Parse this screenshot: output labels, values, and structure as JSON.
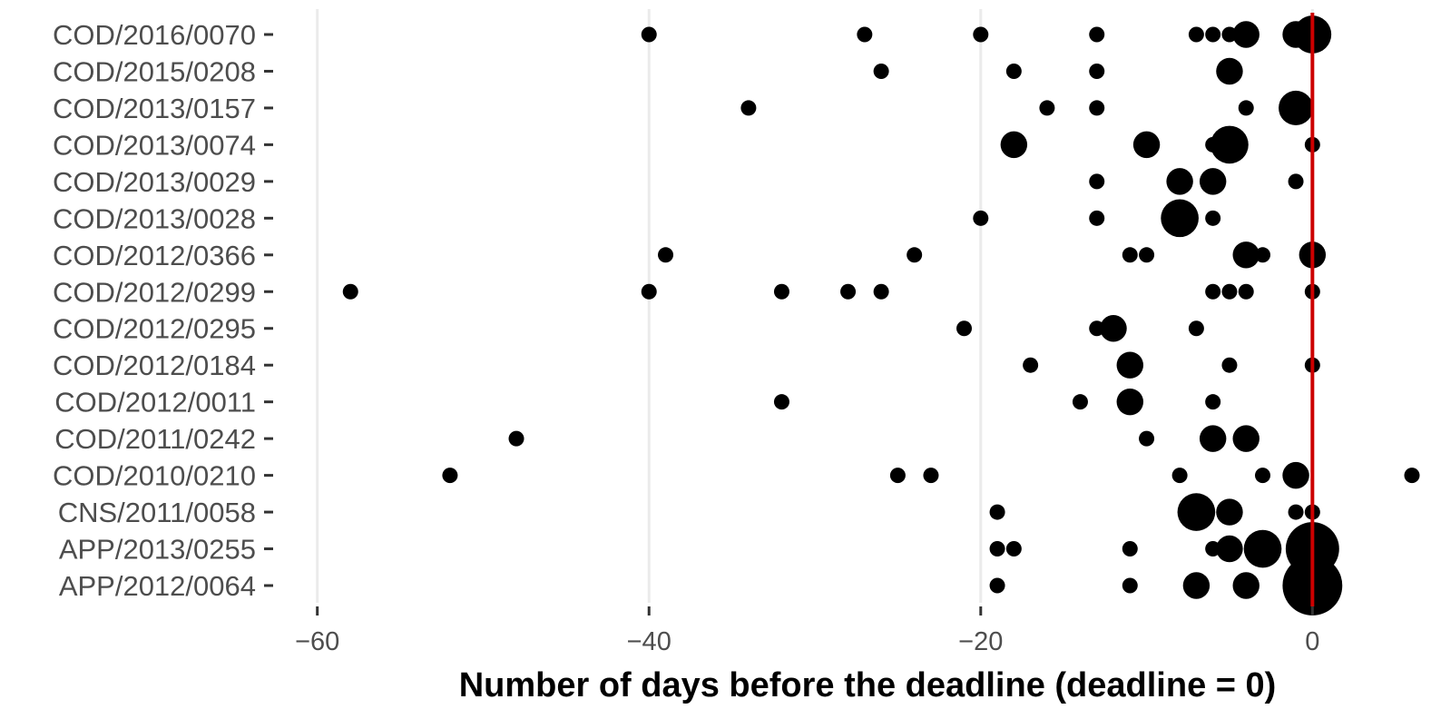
{
  "chart_data": {
    "type": "scatter",
    "title": "",
    "xlabel": "Number of days before the deadline (deadline = 0)",
    "ylabel": "",
    "xlim": [
      -62.5,
      6
    ],
    "x_ticks": [
      -60,
      -40,
      -20,
      0
    ],
    "x_tick_labels": [
      "−60",
      "−40",
      "−20",
      "0"
    ],
    "grid": "vertical major lines only",
    "reference_line": {
      "x": 0,
      "color": "#cc0000"
    },
    "point_color": "#000000",
    "size_encoding": "marker area grows with number of submissions on that day (unlabelled; no legend shown)",
    "categories": [
      "COD/2016/0070",
      "COD/2015/0208",
      "COD/2013/0157",
      "COD/2013/0074",
      "COD/2013/0029",
      "COD/2013/0028",
      "COD/2012/0366",
      "COD/2012/0299",
      "COD/2012/0295",
      "COD/2012/0184",
      "COD/2012/0011",
      "COD/2011/0242",
      "COD/2010/0210",
      "CNS/2011/0058",
      "APP/2013/0255",
      "APP/2012/0064"
    ],
    "points": [
      {
        "category": "COD/2016/0070",
        "x": -40,
        "size": 1
      },
      {
        "category": "COD/2016/0070",
        "x": -27,
        "size": 1
      },
      {
        "category": "COD/2016/0070",
        "x": -20,
        "size": 1
      },
      {
        "category": "COD/2016/0070",
        "x": -13,
        "size": 1
      },
      {
        "category": "COD/2016/0070",
        "x": -7,
        "size": 1
      },
      {
        "category": "COD/2016/0070",
        "x": -6,
        "size": 1
      },
      {
        "category": "COD/2016/0070",
        "x": -5,
        "size": 1
      },
      {
        "category": "COD/2016/0070",
        "x": -4,
        "size": 3
      },
      {
        "category": "COD/2016/0070",
        "x": -1,
        "size": 3
      },
      {
        "category": "COD/2016/0070",
        "x": 0,
        "size": 6
      },
      {
        "category": "COD/2015/0208",
        "x": -26,
        "size": 1
      },
      {
        "category": "COD/2015/0208",
        "x": -18,
        "size": 1
      },
      {
        "category": "COD/2015/0208",
        "x": -13,
        "size": 1
      },
      {
        "category": "COD/2015/0208",
        "x": -5,
        "size": 3
      },
      {
        "category": "COD/2013/0157",
        "x": -34,
        "size": 1
      },
      {
        "category": "COD/2013/0157",
        "x": -16,
        "size": 1
      },
      {
        "category": "COD/2013/0157",
        "x": -13,
        "size": 1
      },
      {
        "category": "COD/2013/0157",
        "x": -4,
        "size": 1
      },
      {
        "category": "COD/2013/0157",
        "x": -1,
        "size": 5
      },
      {
        "category": "COD/2013/0074",
        "x": -18,
        "size": 3
      },
      {
        "category": "COD/2013/0074",
        "x": -10,
        "size": 3
      },
      {
        "category": "COD/2013/0074",
        "x": -6,
        "size": 1
      },
      {
        "category": "COD/2013/0074",
        "x": -5,
        "size": 6
      },
      {
        "category": "COD/2013/0074",
        "x": 0,
        "size": 1
      },
      {
        "category": "COD/2013/0029",
        "x": -13,
        "size": 1
      },
      {
        "category": "COD/2013/0029",
        "x": -8,
        "size": 3
      },
      {
        "category": "COD/2013/0029",
        "x": -6,
        "size": 3
      },
      {
        "category": "COD/2013/0029",
        "x": -1,
        "size": 1
      },
      {
        "category": "COD/2013/0028",
        "x": -20,
        "size": 1
      },
      {
        "category": "COD/2013/0028",
        "x": -13,
        "size": 1
      },
      {
        "category": "COD/2013/0028",
        "x": -8,
        "size": 6
      },
      {
        "category": "COD/2013/0028",
        "x": -6,
        "size": 1
      },
      {
        "category": "COD/2012/0366",
        "x": -39,
        "size": 1
      },
      {
        "category": "COD/2012/0366",
        "x": -24,
        "size": 1
      },
      {
        "category": "COD/2012/0366",
        "x": -11,
        "size": 1
      },
      {
        "category": "COD/2012/0366",
        "x": -10,
        "size": 1
      },
      {
        "category": "COD/2012/0366",
        "x": -4,
        "size": 3
      },
      {
        "category": "COD/2012/0366",
        "x": -3,
        "size": 1
      },
      {
        "category": "COD/2012/0366",
        "x": 0,
        "size": 3
      },
      {
        "category": "COD/2012/0299",
        "x": -58,
        "size": 1
      },
      {
        "category": "COD/2012/0299",
        "x": -40,
        "size": 1
      },
      {
        "category": "COD/2012/0299",
        "x": -32,
        "size": 1
      },
      {
        "category": "COD/2012/0299",
        "x": -28,
        "size": 1
      },
      {
        "category": "COD/2012/0299",
        "x": -26,
        "size": 1
      },
      {
        "category": "COD/2012/0299",
        "x": -6,
        "size": 1
      },
      {
        "category": "COD/2012/0299",
        "x": -5,
        "size": 1
      },
      {
        "category": "COD/2012/0299",
        "x": -4,
        "size": 1
      },
      {
        "category": "COD/2012/0299",
        "x": 0,
        "size": 1
      },
      {
        "category": "COD/2012/0295",
        "x": -21,
        "size": 1
      },
      {
        "category": "COD/2012/0295",
        "x": -13,
        "size": 1
      },
      {
        "category": "COD/2012/0295",
        "x": -12,
        "size": 3
      },
      {
        "category": "COD/2012/0295",
        "x": -7,
        "size": 1
      },
      {
        "category": "COD/2012/0184",
        "x": -17,
        "size": 1
      },
      {
        "category": "COD/2012/0184",
        "x": -11,
        "size": 3
      },
      {
        "category": "COD/2012/0184",
        "x": -5,
        "size": 1
      },
      {
        "category": "COD/2012/0184",
        "x": 0,
        "size": 1
      },
      {
        "category": "COD/2012/0011",
        "x": -32,
        "size": 1
      },
      {
        "category": "COD/2012/0011",
        "x": -14,
        "size": 1
      },
      {
        "category": "COD/2012/0011",
        "x": -11,
        "size": 3
      },
      {
        "category": "COD/2012/0011",
        "x": -6,
        "size": 1
      },
      {
        "category": "COD/2011/0242",
        "x": -48,
        "size": 1
      },
      {
        "category": "COD/2011/0242",
        "x": -10,
        "size": 1
      },
      {
        "category": "COD/2011/0242",
        "x": -6,
        "size": 3
      },
      {
        "category": "COD/2011/0242",
        "x": -4,
        "size": 3
      },
      {
        "category": "COD/2010/0210",
        "x": -52,
        "size": 1
      },
      {
        "category": "COD/2010/0210",
        "x": -25,
        "size": 1
      },
      {
        "category": "COD/2010/0210",
        "x": -23,
        "size": 1
      },
      {
        "category": "COD/2010/0210",
        "x": -8,
        "size": 1
      },
      {
        "category": "COD/2010/0210",
        "x": -3,
        "size": 1
      },
      {
        "category": "COD/2010/0210",
        "x": -1,
        "size": 3
      },
      {
        "category": "COD/2010/0210",
        "x": 6,
        "size": 1
      },
      {
        "category": "CNS/2011/0058",
        "x": -19,
        "size": 1
      },
      {
        "category": "CNS/2011/0058",
        "x": -7,
        "size": 6
      },
      {
        "category": "CNS/2011/0058",
        "x": -5,
        "size": 3
      },
      {
        "category": "CNS/2011/0058",
        "x": -1,
        "size": 1
      },
      {
        "category": "CNS/2011/0058",
        "x": 0,
        "size": 1
      },
      {
        "category": "APP/2013/0255",
        "x": -19,
        "size": 1
      },
      {
        "category": "APP/2013/0255",
        "x": -18,
        "size": 1
      },
      {
        "category": "APP/2013/0255",
        "x": -11,
        "size": 1
      },
      {
        "category": "APP/2013/0255",
        "x": -6,
        "size": 1
      },
      {
        "category": "APP/2013/0255",
        "x": -5,
        "size": 3
      },
      {
        "category": "APP/2013/0255",
        "x": -3,
        "size": 6
      },
      {
        "category": "APP/2013/0255",
        "x": 0,
        "size": 12
      },
      {
        "category": "APP/2012/0064",
        "x": -19,
        "size": 1
      },
      {
        "category": "APP/2012/0064",
        "x": -11,
        "size": 1
      },
      {
        "category": "APP/2012/0064",
        "x": -7,
        "size": 3
      },
      {
        "category": "APP/2012/0064",
        "x": -4,
        "size": 3
      },
      {
        "category": "APP/2012/0064",
        "x": 0,
        "size": 15
      }
    ]
  }
}
